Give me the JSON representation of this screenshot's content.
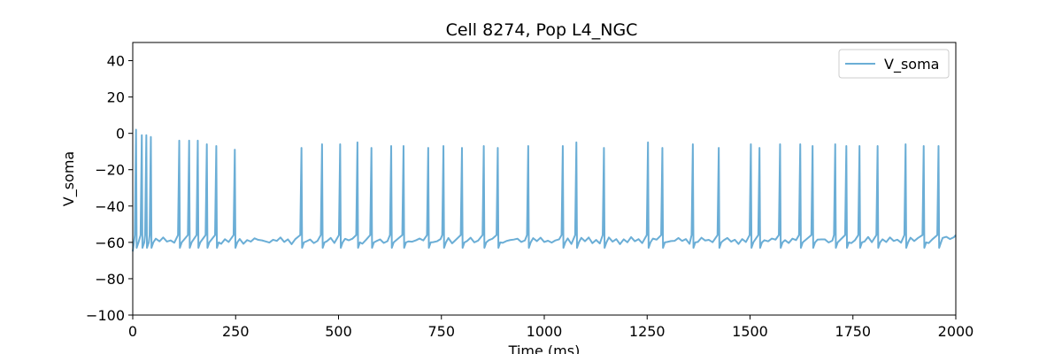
{
  "chart_data": {
    "type": "line",
    "title": "Cell 8274, Pop L4_NGC",
    "xlabel": "Time (ms)",
    "ylabel": "V_soma",
    "xlim": [
      0,
      2000
    ],
    "ylim": [
      -100,
      50
    ],
    "xticks": [
      0,
      250,
      500,
      750,
      1000,
      1250,
      1500,
      1750,
      2000
    ],
    "yticks": [
      -100,
      -80,
      -60,
      -40,
      -20,
      0,
      20,
      40
    ],
    "grid": false,
    "legend_position": "top-right",
    "series": [
      {
        "name": "V_soma",
        "color": "#6baed6",
        "baseline_mv": -59,
        "spikes": [
          {
            "t": 8,
            "peak": 2
          },
          {
            "t": 22,
            "peak": -1
          },
          {
            "t": 33,
            "peak": -1
          },
          {
            "t": 44,
            "peak": -2
          },
          {
            "t": 113,
            "peak": -4
          },
          {
            "t": 137,
            "peak": -4
          },
          {
            "t": 158,
            "peak": -4
          },
          {
            "t": 180,
            "peak": -6
          },
          {
            "t": 203,
            "peak": -7
          },
          {
            "t": 248,
            "peak": -9
          },
          {
            "t": 410,
            "peak": -8
          },
          {
            "t": 460,
            "peak": -6
          },
          {
            "t": 504,
            "peak": -6
          },
          {
            "t": 546,
            "peak": -5
          },
          {
            "t": 580,
            "peak": -8
          },
          {
            "t": 628,
            "peak": -7
          },
          {
            "t": 658,
            "peak": -7
          },
          {
            "t": 718,
            "peak": -8
          },
          {
            "t": 755,
            "peak": -7
          },
          {
            "t": 800,
            "peak": -8
          },
          {
            "t": 853,
            "peak": -7
          },
          {
            "t": 887,
            "peak": -8
          },
          {
            "t": 961,
            "peak": -7
          },
          {
            "t": 1045,
            "peak": -7
          },
          {
            "t": 1078,
            "peak": -5
          },
          {
            "t": 1145,
            "peak": -8
          },
          {
            "t": 1252,
            "peak": -5
          },
          {
            "t": 1287,
            "peak": -8
          },
          {
            "t": 1361,
            "peak": -6
          },
          {
            "t": 1424,
            "peak": -8
          },
          {
            "t": 1502,
            "peak": -6
          },
          {
            "t": 1523,
            "peak": -8
          },
          {
            "t": 1573,
            "peak": -6
          },
          {
            "t": 1622,
            "peak": -6
          },
          {
            "t": 1652,
            "peak": -7
          },
          {
            "t": 1707,
            "peak": -6
          },
          {
            "t": 1734,
            "peak": -7
          },
          {
            "t": 1766,
            "peak": -7
          },
          {
            "t": 1810,
            "peak": -7
          },
          {
            "t": 1878,
            "peak": -6
          },
          {
            "t": 1922,
            "peak": -7
          },
          {
            "t": 1958,
            "peak": -7
          }
        ]
      }
    ]
  }
}
